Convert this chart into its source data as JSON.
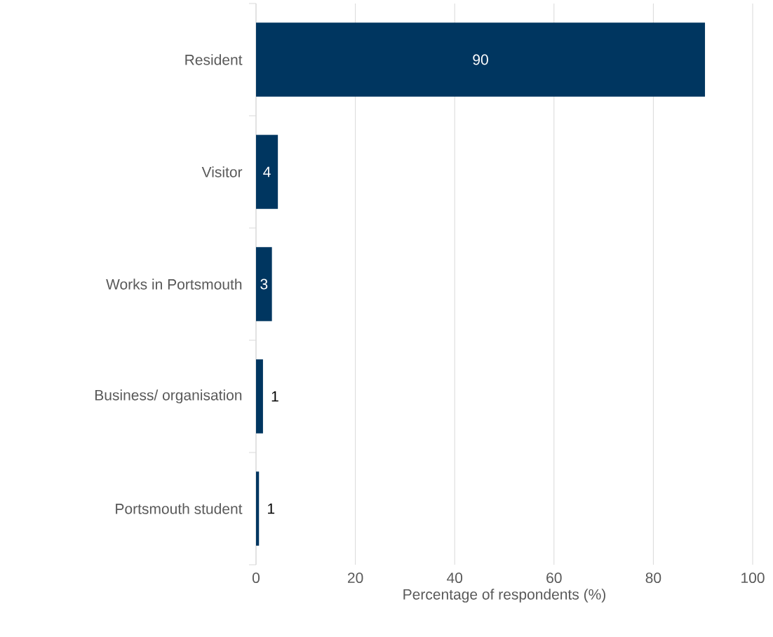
{
  "chart_data": {
    "type": "bar",
    "orientation": "horizontal",
    "categories": [
      "Resident",
      "Visitor",
      "Works in Portsmouth",
      "Business/ organisation",
      "Portsmouth student"
    ],
    "values": [
      90.4,
      4.4,
      3.2,
      1.4,
      0.6
    ],
    "value_labels": [
      "90",
      "4",
      "3",
      "1",
      "1"
    ],
    "color": "#003660",
    "xlabel": "Percentage of respondents (%)",
    "xlim": [
      0,
      100
    ],
    "xticks": [
      0,
      20,
      40,
      60,
      80,
      100
    ],
    "grid": "x"
  }
}
